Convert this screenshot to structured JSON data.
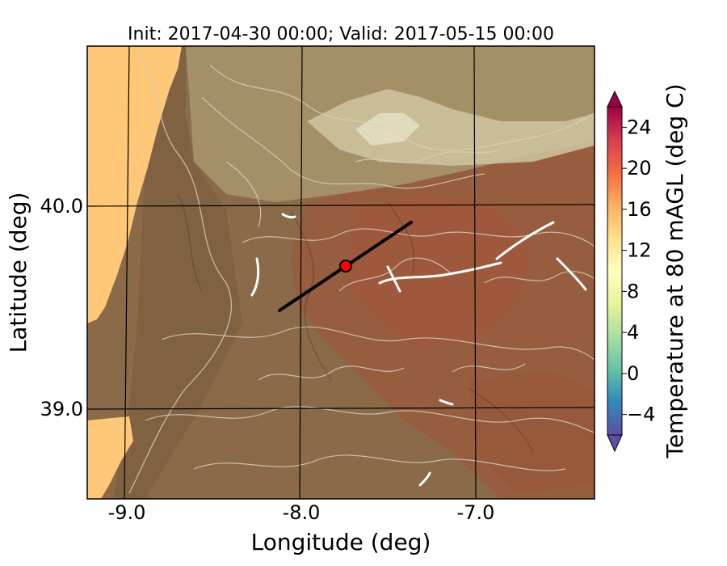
{
  "title": "Init: 2017-04-30 00:00; Valid: 2017-05-15 00:00",
  "xlabel": "Longitude (deg)",
  "ylabel": "Latitude (deg)",
  "x_ticks": [
    "-9.0",
    "-8.0",
    "-7.0"
  ],
  "y_ticks": [
    "40.0",
    "39.0"
  ],
  "colorbar": {
    "label": "Temperature at 80 mAGL (deg C)",
    "ticks": [
      "−4",
      "0",
      "4",
      "8",
      "12",
      "16",
      "20",
      "24"
    ],
    "range": [
      -6,
      26
    ],
    "colors": [
      "#5e4fa2",
      "#3288bd",
      "#66c2a5",
      "#abdda4",
      "#e6f598",
      "#ffffbf",
      "#fee08b",
      "#fdae61",
      "#f46d43",
      "#d53e4f",
      "#9e0142"
    ]
  },
  "map": {
    "lon_range": [
      -9.25,
      -6.3
    ],
    "lat_range": [
      38.55,
      40.8
    ],
    "transect": {
      "start": [
        -8.12,
        39.47
      ],
      "end": [
        -7.37,
        39.92
      ]
    },
    "marker": {
      "lon": -7.75,
      "lat": 39.69,
      "color": "#ff0000"
    },
    "colors": {
      "land": "#8a6a48",
      "highland": "#b8a880",
      "ocean": "#ffc878",
      "warm": "#a0583a"
    }
  }
}
